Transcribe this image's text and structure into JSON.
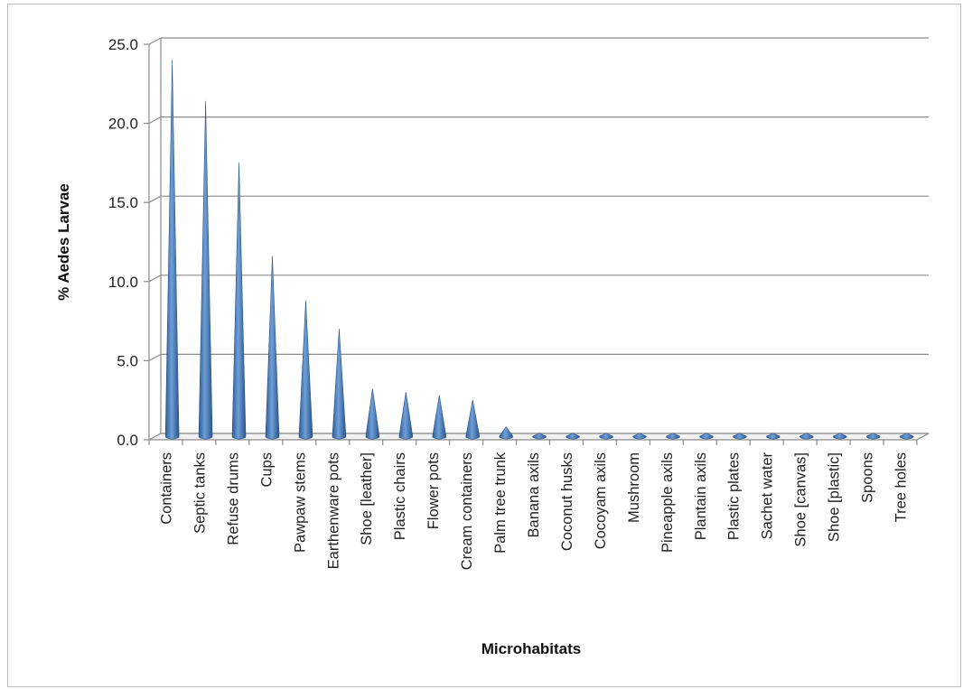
{
  "chart_data": {
    "type": "bar",
    "title": "",
    "xlabel": "Microhabitats",
    "ylabel": "% Aedes Larvae",
    "ylim": [
      0,
      25
    ],
    "yticks": [
      "0.0",
      "5.0",
      "10.0",
      "15.0",
      "20.0",
      "25.0"
    ],
    "grid": true,
    "legend": "none",
    "bar_shape": "cone",
    "bar_color": "#4a7ebb",
    "categories": [
      "Containers",
      "Septic tanks",
      "Refuse drums",
      "Cups",
      "Pawpaw stems",
      "Earthenware pots",
      "Shoe [leather]",
      "Plastic chairs",
      "Flower pots",
      "Cream containers",
      "Palm tree trunk",
      "Banana axils",
      "Coconut husks",
      "Cocoyam axils",
      "Mushroom",
      "Pineapple axils",
      "Plantain axils",
      "Plastic plates",
      "Sachet water",
      "Shoe [canvas]",
      "Shoe [plastic]",
      "Spoons",
      "Tree holes"
    ],
    "values": [
      23.8,
      21.2,
      17.3,
      11.4,
      8.6,
      6.8,
      3.0,
      2.8,
      2.6,
      2.3,
      0.6,
      0.2,
      0.2,
      0.2,
      0.2,
      0.2,
      0.2,
      0.2,
      0.2,
      0.2,
      0.2,
      0.2,
      0.2
    ]
  }
}
